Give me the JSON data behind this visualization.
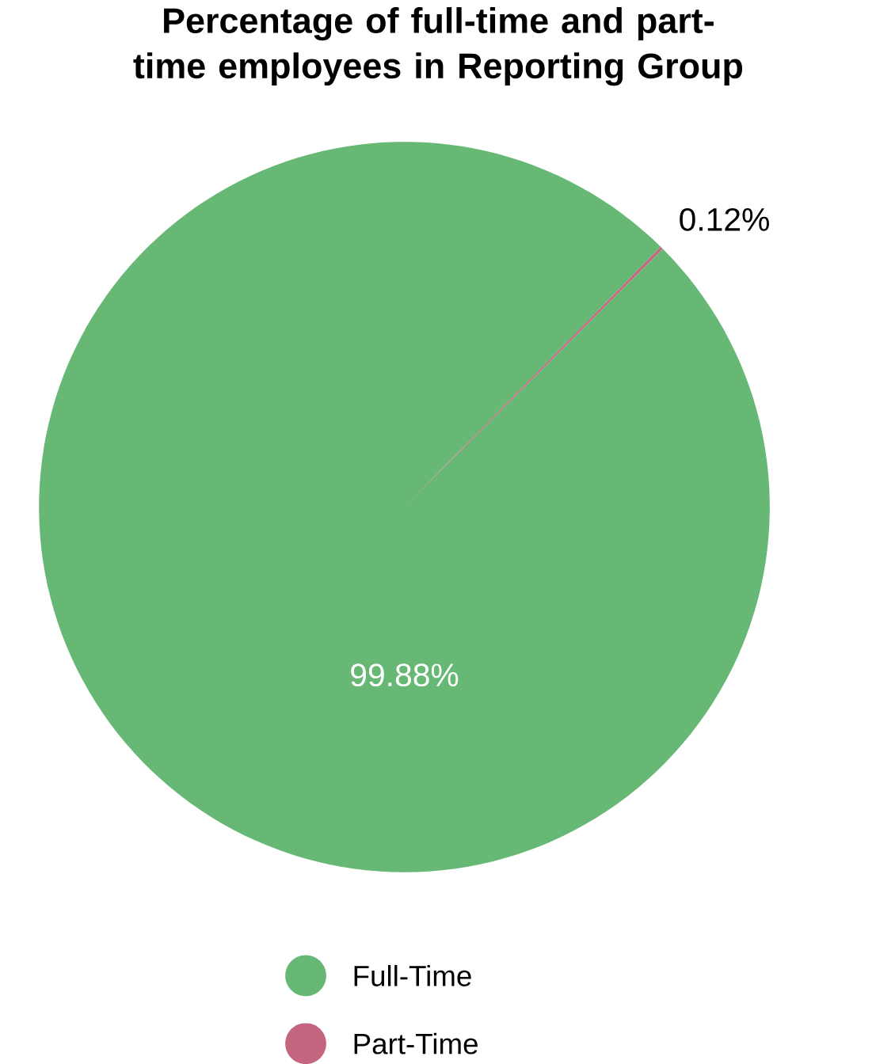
{
  "chart_data": {
    "type": "pie",
    "title": "Percentage of full-time and part-time employees in Reporting Group",
    "categories": [
      "Full-Time",
      "Part-Time"
    ],
    "values": [
      99.88,
      0.12
    ],
    "colors": [
      "#66b874",
      "#c4667f"
    ],
    "value_labels": [
      "99.88%",
      "0.12%"
    ],
    "legend": "bottom"
  }
}
